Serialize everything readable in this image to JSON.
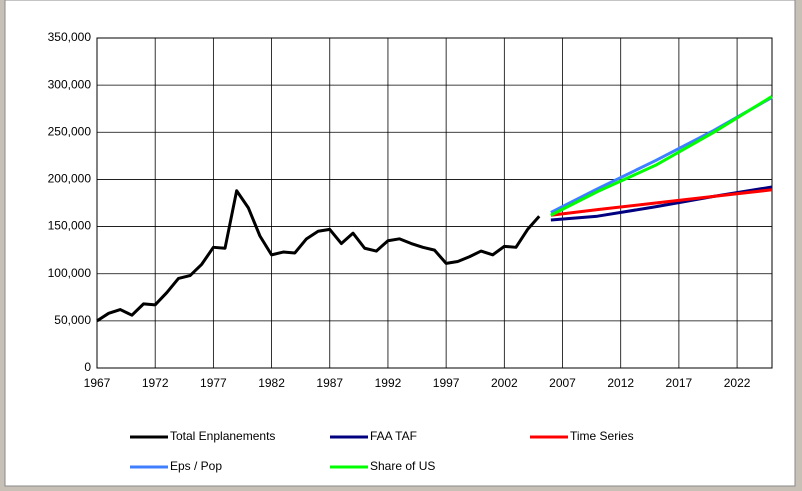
{
  "chart_data": {
    "type": "line",
    "xlim": [
      1967,
      2025
    ],
    "xticks": [
      1967,
      1972,
      1977,
      1982,
      1987,
      1992,
      1997,
      2002,
      2007,
      2012,
      2017,
      2022
    ],
    "ylim": [
      0,
      350000
    ],
    "yticks": [
      0,
      {
        "value": 50000,
        "label": "50,000"
      },
      {
        "value": 100000,
        "label": "100,000"
      },
      {
        "value": 150000,
        "label": "150,000"
      },
      {
        "value": 200000,
        "label": "200,000"
      },
      {
        "value": 250000,
        "label": "250,000"
      },
      {
        "value": 300000,
        "label": "300,000"
      },
      {
        "value": 350000,
        "label": "350,000"
      }
    ],
    "grid": true,
    "legend": "bottom",
    "series": [
      {
        "name": "Total Enplanements",
        "color": "#000000",
        "x": [
          1967,
          1968,
          1969,
          1970,
          1971,
          1972,
          1973,
          1974,
          1975,
          1976,
          1977,
          1978,
          1979,
          1980,
          1981,
          1982,
          1983,
          1984,
          1985,
          1986,
          1987,
          1988,
          1989,
          1990,
          1991,
          1992,
          1993,
          1994,
          1995,
          1996,
          1997,
          1998,
          1999,
          2000,
          2001,
          2002,
          2003,
          2004,
          2005
        ],
        "values": [
          50000,
          58000,
          62000,
          56000,
          68000,
          67000,
          80000,
          95000,
          98000,
          110000,
          128000,
          127000,
          188000,
          170000,
          140000,
          120000,
          123000,
          122000,
          137000,
          145000,
          147000,
          132000,
          143000,
          127000,
          124000,
          135000,
          137000,
          132000,
          128000,
          125000,
          111000,
          113000,
          118000,
          124000,
          120000,
          129000,
          128000,
          147000,
          161000
        ]
      },
      {
        "name": "FAA TAF",
        "color": "#000080",
        "x": [
          2006,
          2010,
          2015,
          2020,
          2025
        ],
        "values": [
          157000,
          161000,
          171000,
          182000,
          192000
        ]
      },
      {
        "name": "Time Series",
        "color": "#ff0000",
        "x": [
          2006,
          2010,
          2015,
          2020,
          2025
        ],
        "values": [
          162000,
          168000,
          175000,
          182000,
          189000
        ]
      },
      {
        "name": "Eps / Pop",
        "color": "#3f7fff",
        "x": [
          2006,
          2010,
          2015,
          2020,
          2025
        ],
        "values": [
          165000,
          190000,
          220000,
          252000,
          287000
        ]
      },
      {
        "name": "Share of US",
        "color": "#00ff00",
        "x": [
          2006,
          2010,
          2015,
          2020,
          2025
        ],
        "values": [
          162000,
          187000,
          215000,
          250000,
          288000
        ]
      }
    ]
  }
}
